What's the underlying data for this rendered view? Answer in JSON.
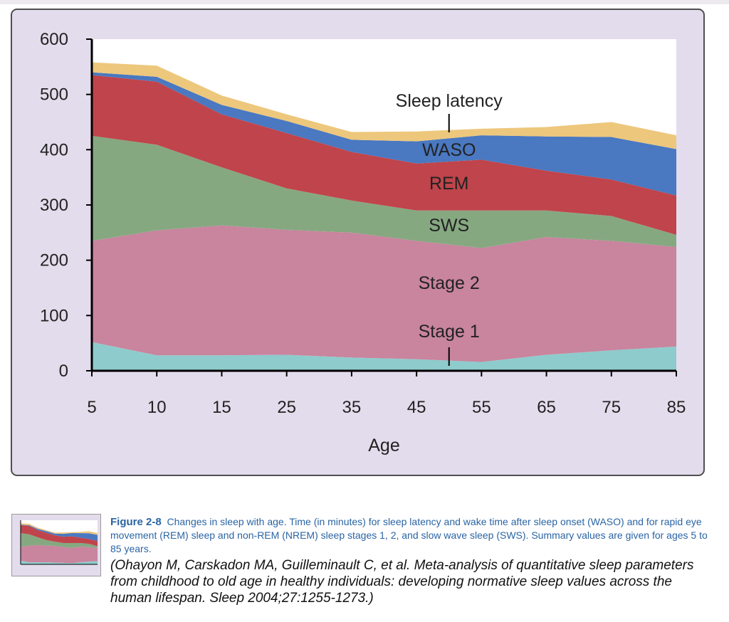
{
  "chart_data": {
    "type": "area",
    "stacked": true,
    "x": [
      5,
      10,
      15,
      25,
      35,
      45,
      55,
      65,
      75,
      85
    ],
    "xlabel": "Age",
    "ylabel": "",
    "ylim": [
      0,
      600
    ],
    "yticks": [
      "0",
      "100",
      "200",
      "300",
      "400",
      "500",
      "600"
    ],
    "xticks": [
      "5",
      "10",
      "15",
      "25",
      "35",
      "45",
      "55",
      "65",
      "75",
      "85"
    ],
    "series": [
      {
        "name": "Stage 1",
        "color": "#8ecbcc",
        "values": [
          52,
          28,
          28,
          29,
          24,
          21,
          16,
          29,
          37,
          44
        ]
      },
      {
        "name": "Stage 2",
        "color": "#c9849e",
        "values": [
          183,
          226,
          235,
          226,
          226,
          214,
          206,
          213,
          198,
          180
        ]
      },
      {
        "name": "SWS",
        "color": "#86a881",
        "values": [
          190,
          155,
          105,
          75,
          58,
          55,
          68,
          48,
          45,
          22
        ]
      },
      {
        "name": "REM",
        "color": "#c0444b",
        "values": [
          110,
          114,
          96,
          100,
          88,
          85,
          92,
          72,
          66,
          71
        ]
      },
      {
        "name": "WASO",
        "color": "#4a78c1",
        "values": [
          5,
          9,
          17,
          22,
          22,
          40,
          44,
          62,
          77,
          84
        ]
      },
      {
        "name": "Sleep latency",
        "color": "#edc77c",
        "values": [
          18,
          20,
          17,
          12,
          14,
          18,
          12,
          17,
          27,
          25
        ]
      }
    ],
    "annotations": [
      "Sleep latency",
      "WASO",
      "REM",
      "SWS",
      "Stage 2",
      "Stage 1"
    ]
  },
  "caption": {
    "figure_label": "Figure 2-8",
    "text": "Changes in sleep with age. Time (in minutes) for sleep latency and wake time after sleep onset (WASO) and for rapid eye movement (REM) sleep and non-REM (NREM) sleep stages 1, 2, and slow wave sleep (SWS). Summary values are given for ages 5 to 85 years.",
    "reference": "(Ohayon M, Carskadon MA, Guilleminault C, et al. Meta-analysis of quantitative sleep parameters from childhood to old age in healthy individuals: developing normative sleep values across the human lifespan. Sleep 2004;27:1255-1273.)"
  }
}
